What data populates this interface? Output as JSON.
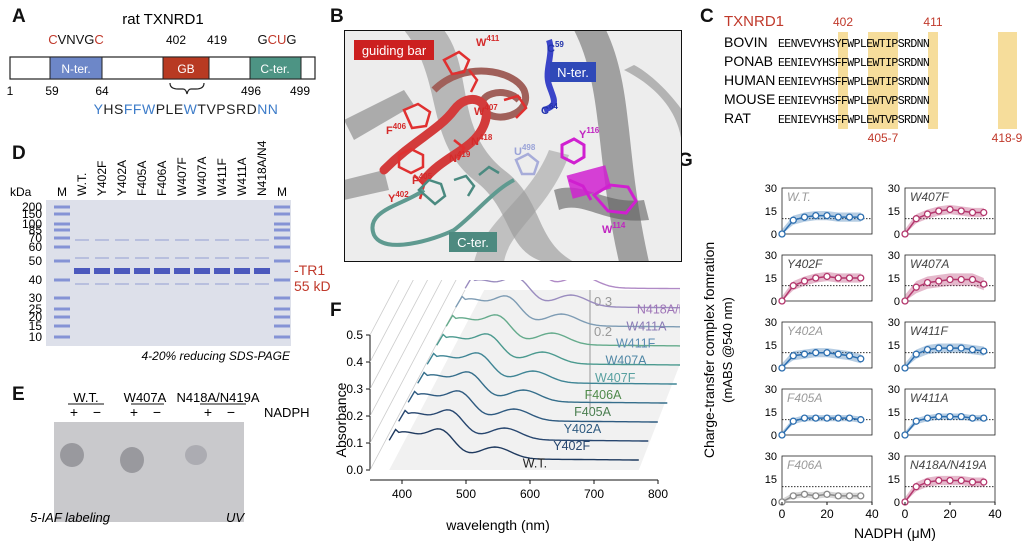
{
  "panel_labels": [
    "A",
    "B",
    "C",
    "D",
    "E",
    "F",
    "G"
  ],
  "panelA": {
    "title": "rat TXNRD1",
    "motif_left": [
      {
        "t": "C",
        "c": "#c0392b"
      },
      {
        "t": "VNVG",
        "c": "#111"
      },
      {
        "t": "C",
        "c": "#c0392b"
      }
    ],
    "motif_right": [
      {
        "t": "G",
        "c": "#111"
      },
      {
        "t": "CU",
        "c": "#c0392b"
      },
      {
        "t": "G",
        "c": "#111"
      }
    ],
    "num_402": "402",
    "num_419": "419",
    "nter_label": "N-ter.",
    "gb_label": "GB",
    "cter_label": "C-ter.",
    "num_1": "1",
    "num_59": "59",
    "num_64": "64",
    "num_496": "496",
    "num_499": "499",
    "seq": [
      {
        "t": "Y",
        "c": "#3d7cc9"
      },
      {
        "t": "HS",
        "c": "#222"
      },
      {
        "t": "FFW",
        "c": "#3d7cc9"
      },
      {
        "t": "PLE",
        "c": "#222"
      },
      {
        "t": "W",
        "c": "#3d7cc9"
      },
      {
        "t": "TVPSRD",
        "c": "#222"
      },
      {
        "t": "NN",
        "c": "#3d7cc9"
      }
    ]
  },
  "panelB": {
    "guiding_bar": "guiding bar",
    "nter": "N-ter.",
    "cter": "C-ter.",
    "residues": [
      {
        "label": "W",
        "sup": "411",
        "color": "#d42a2a"
      },
      {
        "label": "W",
        "sup": "407",
        "color": "#d42a2a"
      },
      {
        "label": "F",
        "sup": "406",
        "color": "#d42a2a"
      },
      {
        "label": "N",
        "sup": "418",
        "color": "#d42a2a"
      },
      {
        "label": "N",
        "sup": "419",
        "color": "#d42a2a"
      },
      {
        "label": "F",
        "sup": "405",
        "color": "#d42a2a"
      },
      {
        "label": "Y",
        "sup": "402",
        "color": "#d42a2a"
      },
      {
        "label": "C",
        "sup": "59",
        "color": "#2233aa"
      },
      {
        "label": "C",
        "sup": "64",
        "color": "#2233aa"
      },
      {
        "label": "Y",
        "sup": "116",
        "color": "#c025c0"
      },
      {
        "label": "W",
        "sup": "114",
        "color": "#c025c0"
      },
      {
        "label": "U",
        "sup": "498",
        "color": "#9aa3d8"
      }
    ]
  },
  "panelC": {
    "header_label": "TXNRD1",
    "num_402": "402",
    "num_411": "411",
    "num_405_7": "405-7",
    "num_418_9": "418-9",
    "rows": [
      {
        "name": "BOVIN",
        "seq": "EENVEVYHSYFWPLEWTIPSRDNN"
      },
      {
        "name": "PONAB",
        "seq": "EENIEVYHSFFWPLEWTIPSRDNN"
      },
      {
        "name": "HUMAN",
        "seq": "EENIEVYHSFFWPLEWTIPSRDNN"
      },
      {
        "name": "MOUSE",
        "seq": "EENIEVYHSFFWPLEWTVPSRDNN"
      },
      {
        "name": "RAT",
        "seq": "EENIEVYHSFFWPLEWTVPSRDNN"
      }
    ]
  },
  "panelD": {
    "kda": "kDa",
    "lanes": [
      "M",
      "W.T.",
      "Y402F",
      "Y402A",
      "F405A",
      "F406A",
      "W407F",
      "W407A",
      "W411F",
      "W411A",
      "N418A/N419A",
      "M"
    ],
    "markers": [
      "200",
      "150",
      "100",
      "85",
      "70",
      "60",
      "50",
      "40",
      "30",
      "25",
      "20",
      "15",
      "10"
    ],
    "tr1": "-TR1",
    "kda55": "55 kDa",
    "caption": "4-20% reducing SDS-PAGE"
  },
  "panelE": {
    "groups": [
      "W.T.",
      "W407A",
      "N418A/N419A"
    ],
    "signs": [
      "+",
      "−",
      "+",
      "−",
      "+",
      "−"
    ],
    "nadph": "NADPH",
    "caption_left": "5-IAF labeling",
    "caption_right": "UV"
  },
  "panelF": {
    "ylabel": "Absorbance",
    "xlabel": "wavelength (nm)",
    "yticks": [
      "0.0",
      "0.1",
      "0.2",
      "0.3",
      "0.4",
      "0.5"
    ],
    "xticks": [
      "400",
      "500",
      "600",
      "700",
      "800"
    ],
    "back_ticks": [
      "0.3",
      "0.2"
    ],
    "series_labels": [
      "W.T.",
      "Y402F",
      "Y402A",
      "F405A",
      "F406A",
      "W407F",
      "W407A",
      "W411F",
      "W411A",
      "N418A/N419A"
    ]
  },
  "chart_data": {
    "type": "line",
    "ylabel": "Charge-transfer complex fomration\n(mABS @540 nm)",
    "xlabel": "NADPH (μM)",
    "x_ticks": [
      "0",
      "20",
      "40"
    ],
    "y_ticks": [
      "0",
      "15",
      "30"
    ],
    "x": [
      0,
      5,
      10,
      15,
      20,
      25,
      30,
      35
    ],
    "ylim": [
      0,
      30
    ],
    "xlim": [
      0,
      40
    ],
    "panels": [
      {
        "name": "W.T.",
        "color": "#2d6fb0",
        "label_color": "#9a9a9a",
        "values": [
          0,
          9,
          11,
          12,
          12,
          11,
          11,
          11
        ],
        "band": 3
      },
      {
        "name": "W407F",
        "color": "#b4376d",
        "label_color": "#444",
        "values": [
          0,
          10,
          13,
          15,
          16,
          15,
          14,
          14
        ],
        "band": 3
      },
      {
        "name": "Y402F",
        "color": "#b4376d",
        "label_color": "#444",
        "values": [
          0,
          10,
          13,
          15,
          16,
          15,
          15,
          15
        ],
        "band": 3
      },
      {
        "name": "W407A",
        "color": "#b4376d",
        "label_color": "#444",
        "values": [
          0,
          9,
          12,
          13,
          14,
          14,
          14,
          11
        ],
        "band": 4
      },
      {
        "name": "Y402A",
        "color": "#2d6fb0",
        "label_color": "#9a9a9a",
        "values": [
          0,
          8,
          9,
          10,
          10,
          9,
          8,
          6
        ],
        "band": 3
      },
      {
        "name": "W411F",
        "color": "#2d6fb0",
        "label_color": "#444",
        "values": [
          0,
          9,
          12,
          13,
          13,
          13,
          12,
          11
        ],
        "band": 3
      },
      {
        "name": "F405A",
        "color": "#2d6fb0",
        "label_color": "#9a9a9a",
        "values": [
          0,
          9,
          11,
          11,
          11,
          11,
          11,
          10
        ],
        "band": 2
      },
      {
        "name": "W411A",
        "color": "#2d6fb0",
        "label_color": "#444",
        "values": [
          0,
          9,
          11,
          12,
          12,
          12,
          11,
          11
        ],
        "band": 2
      },
      {
        "name": "F406A",
        "color": "#8a8a8a",
        "label_color": "#9a9a9a",
        "values": [
          0,
          4,
          5,
          4,
          5,
          4,
          4,
          4
        ],
        "band": 2
      },
      {
        "name": "N418A/N419A",
        "color": "#b4376d",
        "label_color": "#444",
        "values": [
          0,
          10,
          13,
          14,
          14,
          14,
          13,
          13
        ],
        "band": 3
      }
    ],
    "reference_line": 10
  }
}
